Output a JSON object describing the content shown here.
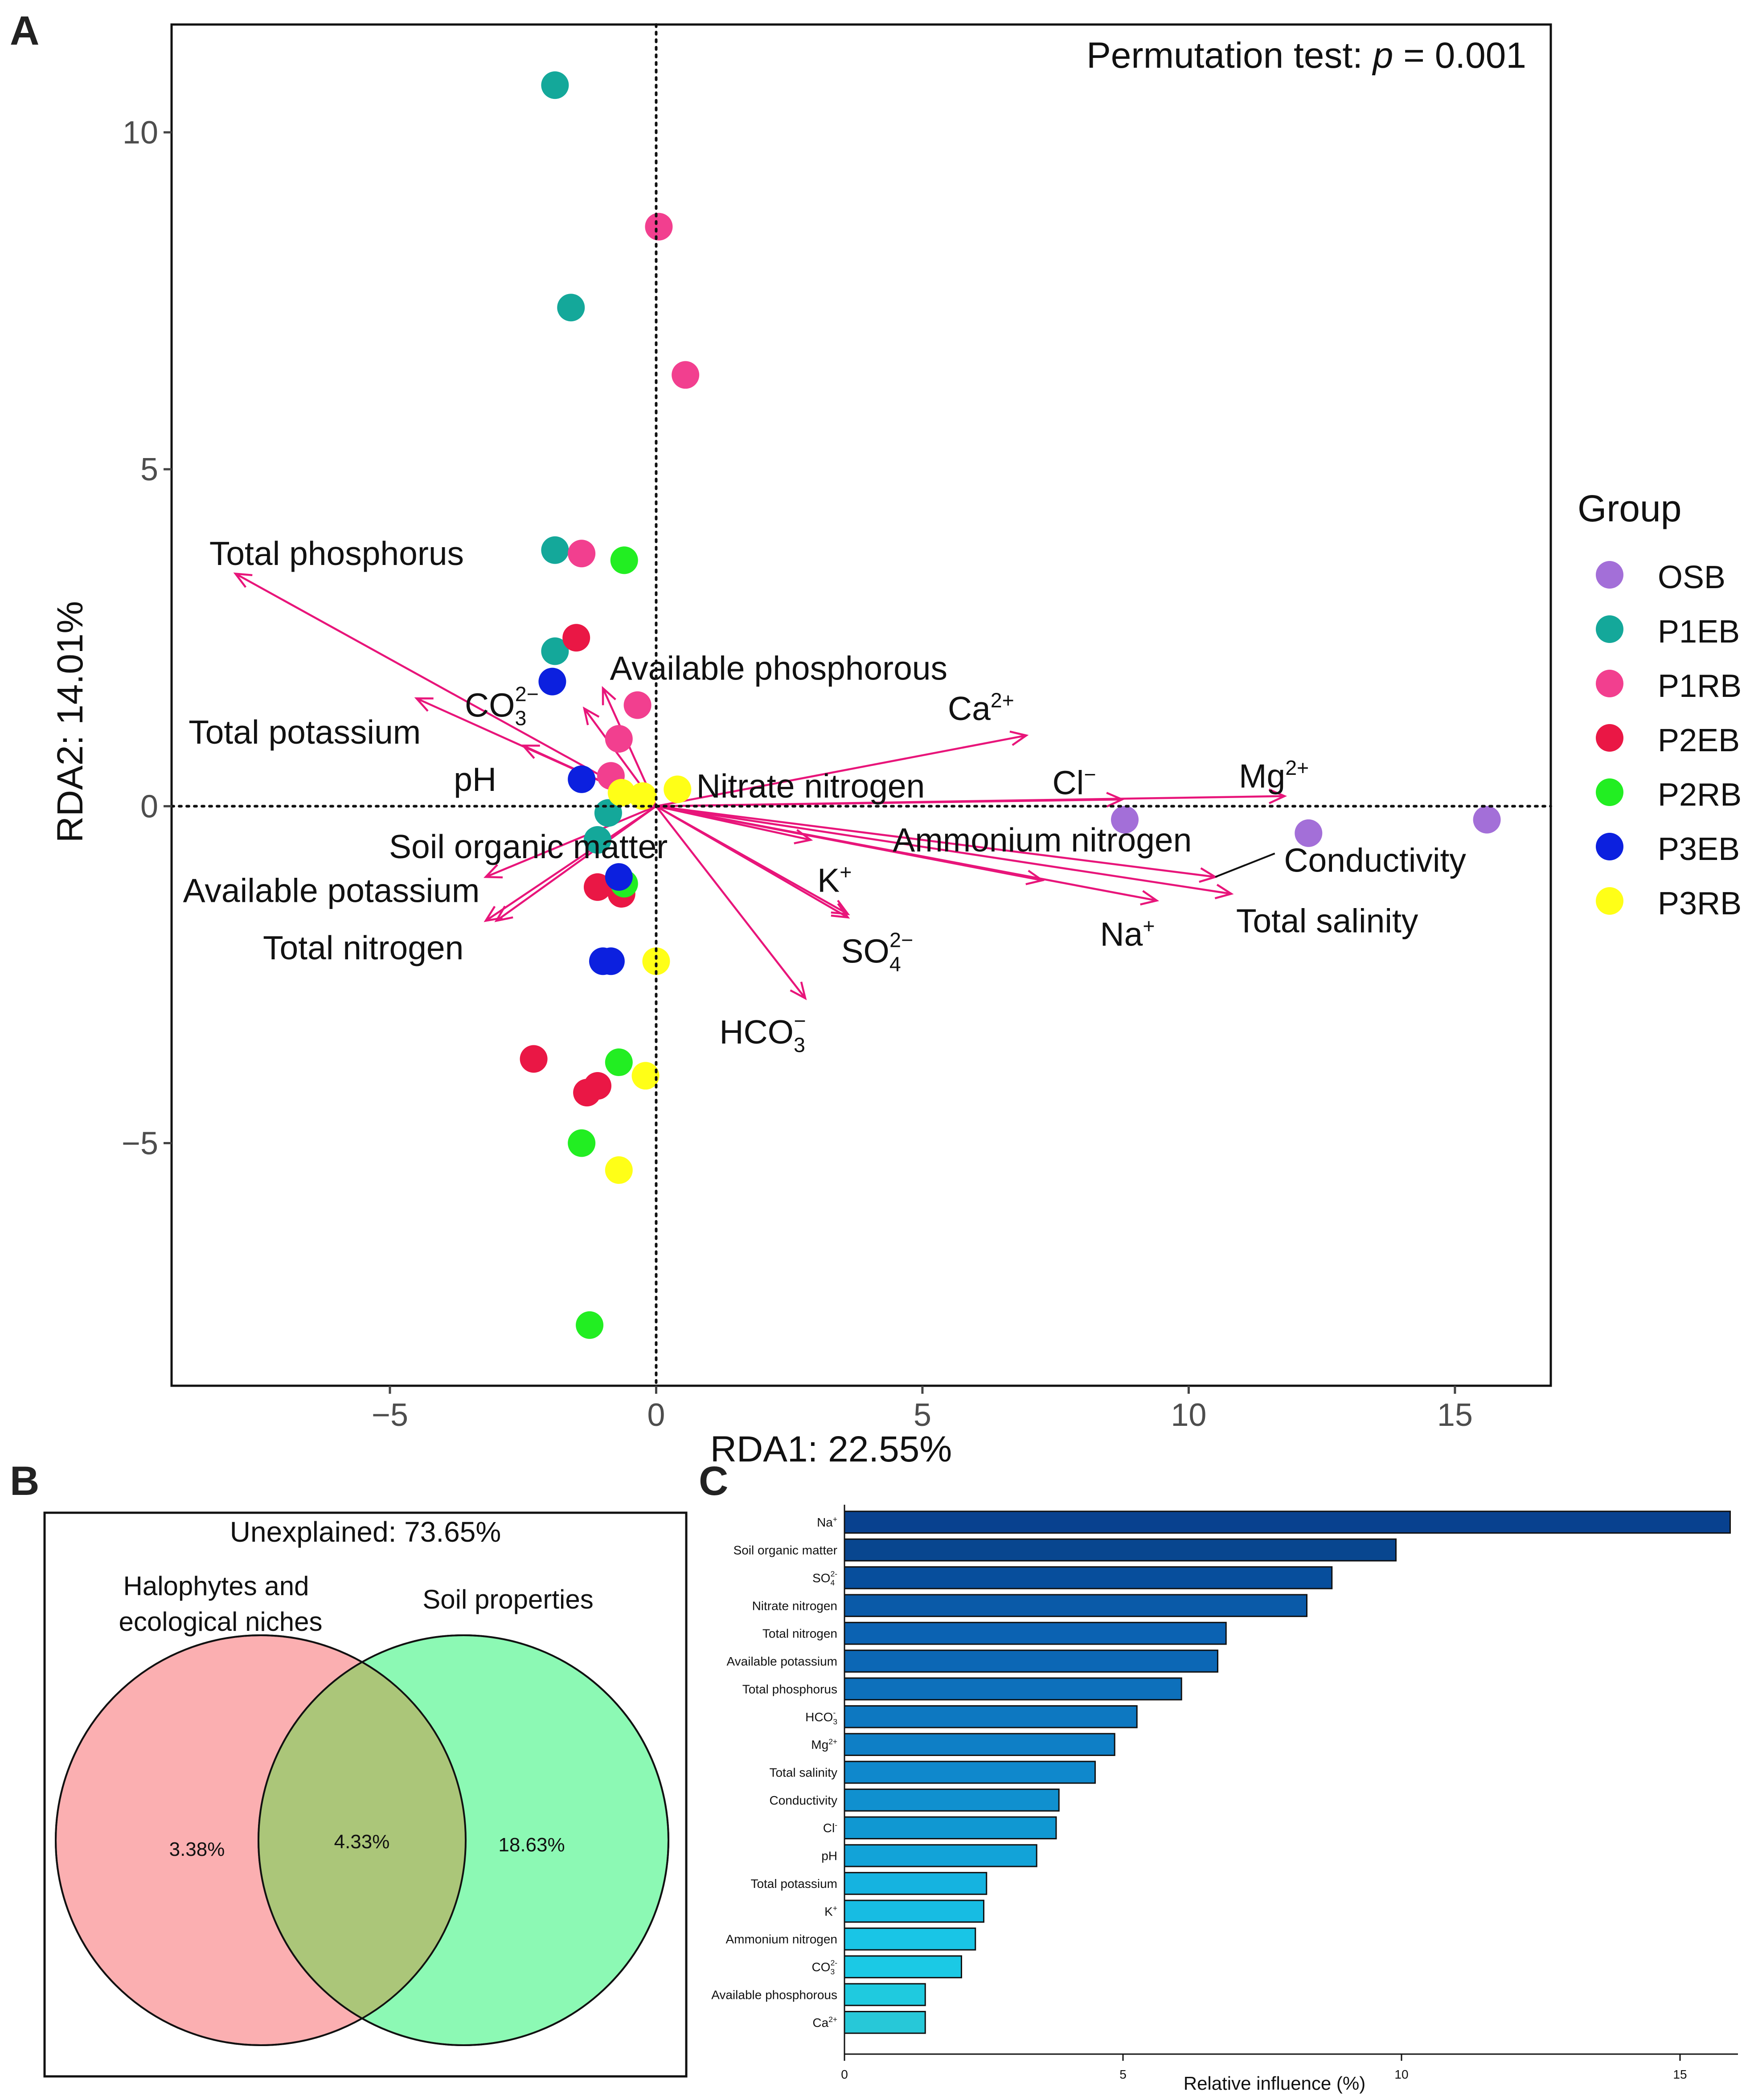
{
  "chart_data": [
    {
      "panel": "A",
      "type": "scatter",
      "subtype": "RDA biplot",
      "annotation": "Permutation test: p = 0.001",
      "annotation_prefix": "Permutation test: ",
      "annotation_p": "p",
      "annotation_value": " = 0.001",
      "xlabel": "RDA1: 22.55%",
      "ylabel": "RDA2: 14.01%",
      "xlim": [
        -9.1,
        16.8
      ],
      "ylim": [
        -8.6,
        11.6
      ],
      "xticks": [
        -5,
        0,
        5,
        10,
        15
      ],
      "yticks": [
        -5,
        0,
        5,
        10
      ],
      "xtick_labels": [
        "−5",
        "0",
        "5",
        "10",
        "15"
      ],
      "ytick_labels": [
        "−5",
        "0",
        "5",
        "10"
      ],
      "legend": {
        "title": "Group",
        "position": "right",
        "entries": [
          {
            "name": "OSB",
            "color": "#a36fd8"
          },
          {
            "name": "P1EB",
            "color": "#14a89a"
          },
          {
            "name": "P1RB",
            "color": "#f23f8f"
          },
          {
            "name": "P2EB",
            "color": "#ea1745"
          },
          {
            "name": "P2RB",
            "color": "#22ee22"
          },
          {
            "name": "P3EB",
            "color": "#0c20df"
          },
          {
            "name": "P3RB",
            "color": "#ffff17"
          }
        ]
      },
      "arrow_color": "#e8157a",
      "points": [
        {
          "group": "P1EB",
          "x": -1.9,
          "y": 10.7
        },
        {
          "group": "P1EB",
          "x": -1.6,
          "y": 7.4
        },
        {
          "group": "P1EB",
          "x": -1.9,
          "y": 3.8
        },
        {
          "group": "P1EB",
          "x": -1.9,
          "y": 2.3
        },
        {
          "group": "P1EB",
          "x": -0.9,
          "y": -0.1
        },
        {
          "group": "P1EB",
          "x": -1.1,
          "y": -0.5
        },
        {
          "group": "P1RB",
          "x": 0.05,
          "y": 8.6
        },
        {
          "group": "P1RB",
          "x": 0.55,
          "y": 6.4
        },
        {
          "group": "P1RB",
          "x": -1.4,
          "y": 3.75
        },
        {
          "group": "P1RB",
          "x": -0.35,
          "y": 1.5
        },
        {
          "group": "P1RB",
          "x": -0.7,
          "y": 1.0
        },
        {
          "group": "P1RB",
          "x": -0.85,
          "y": 0.45
        },
        {
          "group": "P2EB",
          "x": -1.5,
          "y": 2.5
        },
        {
          "group": "P2EB",
          "x": -1.1,
          "y": -1.2
        },
        {
          "group": "P2EB",
          "x": -0.65,
          "y": -1.3
        },
        {
          "group": "P2EB",
          "x": -2.3,
          "y": -3.75
        },
        {
          "group": "P2EB",
          "x": -1.3,
          "y": -4.25
        },
        {
          "group": "P2EB",
          "x": -1.1,
          "y": -4.15
        },
        {
          "group": "P2RB",
          "x": -0.6,
          "y": 3.65
        },
        {
          "group": "P2RB",
          "x": -0.6,
          "y": -1.15
        },
        {
          "group": "P2RB",
          "x": -0.7,
          "y": -3.8
        },
        {
          "group": "P2RB",
          "x": -1.4,
          "y": -5.0
        },
        {
          "group": "P2RB",
          "x": -1.25,
          "y": -7.7
        },
        {
          "group": "P3EB",
          "x": -1.95,
          "y": 1.85
        },
        {
          "group": "P3EB",
          "x": -1.4,
          "y": 0.4
        },
        {
          "group": "P3EB",
          "x": -0.7,
          "y": -1.05
        },
        {
          "group": "P3EB",
          "x": -1.0,
          "y": -2.3
        },
        {
          "group": "P3EB",
          "x": -0.85,
          "y": -2.3
        },
        {
          "group": "P3RB",
          "x": -0.65,
          "y": 0.2
        },
        {
          "group": "P3RB",
          "x": -0.25,
          "y": 0.15
        },
        {
          "group": "P3RB",
          "x": 0.4,
          "y": 0.25
        },
        {
          "group": "P3RB",
          "x": 0.0,
          "y": -2.3
        },
        {
          "group": "P3RB",
          "x": -0.2,
          "y": -4.0
        },
        {
          "group": "P3RB",
          "x": -0.7,
          "y": -5.4
        },
        {
          "group": "OSB",
          "x": 8.8,
          "y": -0.2
        },
        {
          "group": "OSB",
          "x": 12.25,
          "y": -0.4
        },
        {
          "group": "OSB",
          "x": 15.6,
          "y": -0.2
        }
      ],
      "vectors": [
        {
          "name": "Total phosphorus",
          "x": -7.9,
          "y": 3.45,
          "label": {
            "text": "Total phosphorus",
            "x": -6.0,
            "y": 3.75
          }
        },
        {
          "name": "Total potassium",
          "x": -4.5,
          "y": 1.6,
          "label": {
            "text": "Total potassium",
            "x": -6.6,
            "y": 1.1
          }
        },
        {
          "name": "pH",
          "x": -2.5,
          "y": 0.9,
          "label": {
            "text": "pH",
            "x": -3.4,
            "y": 0.4
          }
        },
        {
          "name": "CO3",
          "x": -1.35,
          "y": 1.45,
          "label": {
            "text": "CO",
            "sub": "3",
            "sup": "2−",
            "x": -2.9,
            "y": 1.5
          }
        },
        {
          "name": "Available phosphorous",
          "x": -1.0,
          "y": 1.75,
          "label": {
            "text": "Available phosphorous",
            "x": 2.3,
            "y": 2.05
          }
        },
        {
          "name": "Soil organic matter",
          "x": -3.2,
          "y": -1.05,
          "label": {
            "text": "Soil organic matter",
            "x": -2.4,
            "y": -0.6
          }
        },
        {
          "name": "Available potassium",
          "x": -3.2,
          "y": -1.7,
          "label": {
            "text": "Available potassium",
            "x": -6.1,
            "y": -1.25
          }
        },
        {
          "name": "Total nitrogen",
          "x": -3.0,
          "y": -1.7,
          "label": {
            "text": "Total nitrogen",
            "x": -5.5,
            "y": -2.1
          }
        },
        {
          "name": "Nitrate nitrogen",
          "x": 2.9,
          "y": -0.5,
          "label": {
            "text": "Nitrate nitrogen",
            "x": 2.9,
            "y": 0.3
          }
        },
        {
          "name": "Ca2+",
          "x": 6.95,
          "y": 1.05,
          "label": {
            "text": "Ca",
            "sup": "2+",
            "x": 6.1,
            "y": 1.45
          }
        },
        {
          "name": "Cl-",
          "x": 8.75,
          "y": 0.1,
          "label": {
            "text": "Cl",
            "sup": "−",
            "x": 7.85,
            "y": 0.35
          }
        },
        {
          "name": "Mg2+",
          "x": 11.8,
          "y": 0.15,
          "label": {
            "text": "Mg",
            "sup": "2+",
            "x": 11.6,
            "y": 0.45
          }
        },
        {
          "name": "Ammonium nitrogen",
          "x": 7.25,
          "y": -1.1,
          "label": {
            "text": "Ammonium nitrogen",
            "x": 7.25,
            "y": -0.5
          }
        },
        {
          "name": "Conductivity",
          "x": 10.5,
          "y": -1.05,
          "label": {
            "text": "Conductivity",
            "x": 13.5,
            "y": -0.8
          },
          "leader": true
        },
        {
          "name": "Total salinity",
          "x": 10.8,
          "y": -1.3,
          "label": {
            "text": "Total salinity",
            "x": 12.6,
            "y": -1.7
          }
        },
        {
          "name": "Na+",
          "x": 9.4,
          "y": -1.4,
          "label": {
            "text": "Na",
            "sup": "+",
            "x": 8.85,
            "y": -1.9
          }
        },
        {
          "name": "K+",
          "x": 3.6,
          "y": -1.6,
          "label": {
            "text": "K",
            "sup": "+",
            "x": 3.35,
            "y": -1.1
          }
        },
        {
          "name": "SO42-",
          "x": 3.6,
          "y": -1.65,
          "label": {
            "text": "SO",
            "sub": "4",
            "sup": "2−",
            "x": 4.15,
            "y": -2.15
          }
        },
        {
          "name": "HCO3-",
          "x": 2.8,
          "y": -2.85,
          "label": {
            "text": "HCO",
            "sub": "3",
            "sup": "−",
            "x": 2.0,
            "y": -3.35
          }
        }
      ]
    },
    {
      "panel": "B",
      "type": "venn",
      "title": "Unexplained: 73.65%",
      "sets": [
        {
          "name": "Halophytes and ecological niches",
          "label_lines": [
            "Halophytes and",
            "ecological niches"
          ],
          "value": "3.38%",
          "color": "#fbafb1"
        },
        {
          "name": "Soil properties",
          "label_lines": [
            "Soil properties"
          ],
          "value": "18.63%",
          "color": "#8cf9b4"
        }
      ],
      "intersection": {
        "value": "4.33%",
        "color": "#abc679"
      }
    },
    {
      "panel": "C",
      "type": "bar",
      "orientation": "horizontal",
      "xlabel": "Relative influence (%)",
      "xlim": [
        0,
        16
      ],
      "xticks": [
        0,
        5,
        10,
        15
      ],
      "xtick_labels": [
        "0",
        "5",
        "10",
        "15"
      ],
      "categories": [
        {
          "text": "Na",
          "sup": "+"
        },
        {
          "text": "Soil organic matter"
        },
        {
          "text": "SO",
          "sub": "4",
          "sup": "2-"
        },
        {
          "text": "Nitrate nitrogen"
        },
        {
          "text": "Total nitrogen"
        },
        {
          "text": "Available potassium"
        },
        {
          "text": "Total phosphorus"
        },
        {
          "text": "HCO",
          "sub": "3",
          "sup": "-"
        },
        {
          "text": "Mg",
          "sup": "2+"
        },
        {
          "text": "Total salinity"
        },
        {
          "text": "Conductivity"
        },
        {
          "text": "Cl",
          "sup": "-"
        },
        {
          "text": "pH"
        },
        {
          "text": "Total potassium"
        },
        {
          "text": "K",
          "sup": "+"
        },
        {
          "text": "Ammonium nitrogen"
        },
        {
          "text": "CO",
          "sub": "3",
          "sup": "2-"
        },
        {
          "text": "Available phosphorous"
        },
        {
          "text": "Ca",
          "sup": "2+"
        }
      ],
      "values": [
        15.9,
        9.9,
        8.75,
        8.3,
        6.85,
        6.7,
        6.05,
        5.25,
        4.85,
        4.5,
        3.85,
        3.8,
        3.45,
        2.55,
        2.5,
        2.35,
        2.1,
        1.45,
        1.45
      ],
      "colors": [
        "#08418f",
        "#08468f",
        "#074e9c",
        "#0a5aa8",
        "#0b62b2",
        "#0c67b5",
        "#0d70bb",
        "#0d78c1",
        "#0e7fc6",
        "#0f88cc",
        "#1090cf",
        "#1098d2",
        "#12a3d8",
        "#15b3e0",
        "#17bce3",
        "#19c5e6",
        "#1bc9e5",
        "#1fcadf",
        "#27c8d8"
      ]
    }
  ],
  "panel_labels": {
    "a": "A",
    "b": "B",
    "c": "C"
  }
}
